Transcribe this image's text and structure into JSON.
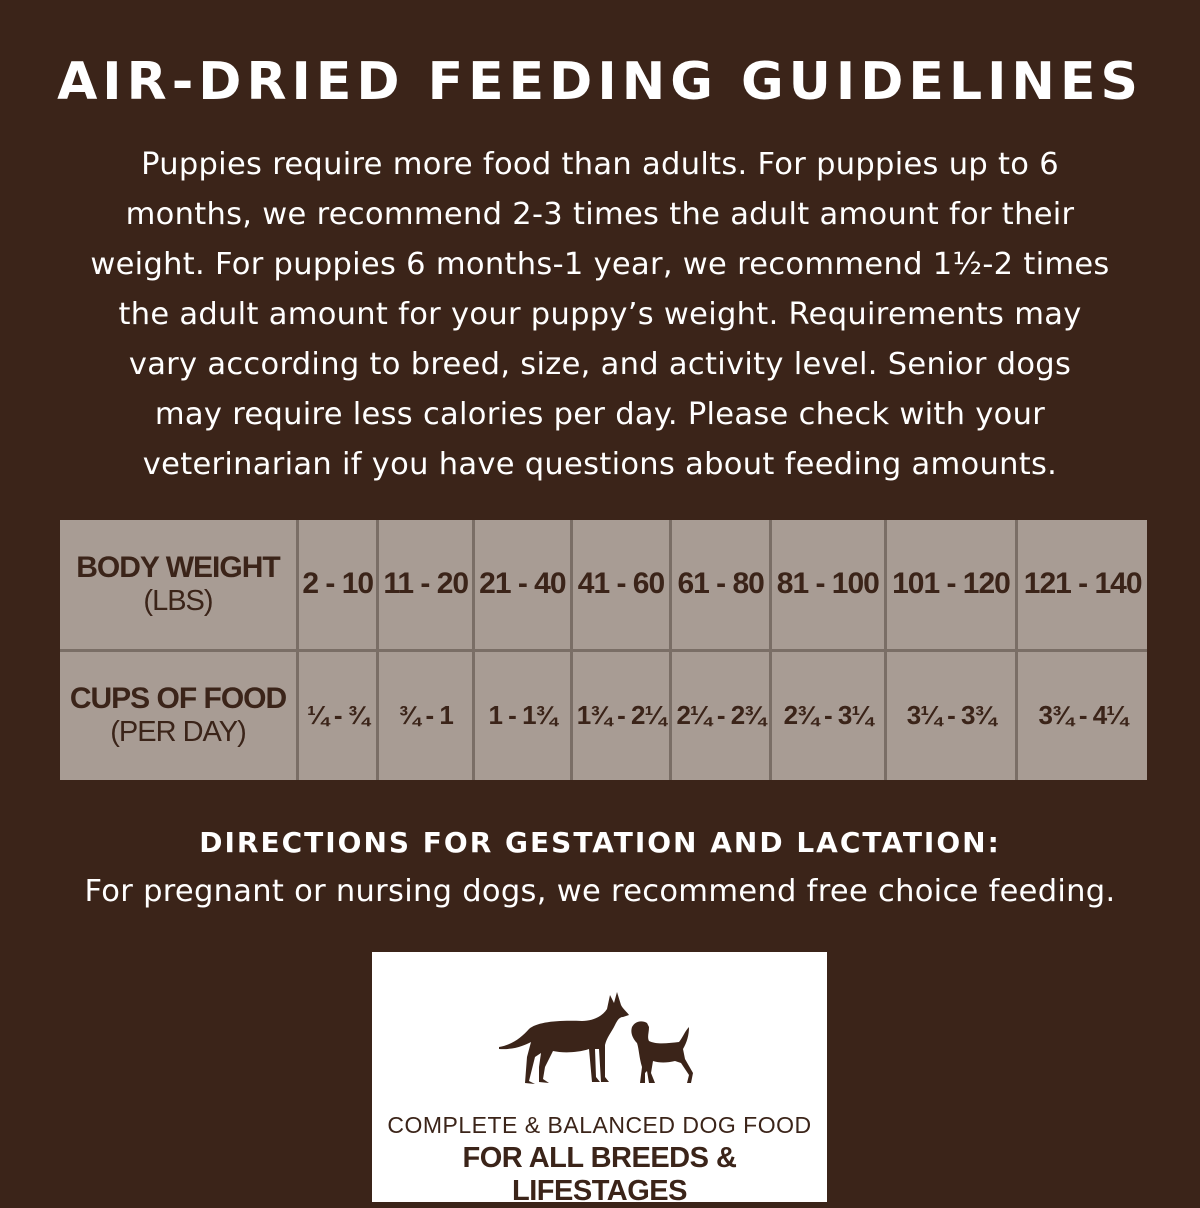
{
  "title": "AIR-DRIED FEEDING GUIDELINES",
  "intro_lines": [
    "Puppies require more food than adults. For puppies up to 6",
    "months, we recommend 2-3 times the adult amount for their",
    "weight. For puppies 6 months-1 year, we recommend 1½-2 times",
    "the adult amount for your puppy’s weight. Requirements may",
    "vary according to breed, size, and activity level. Senior dogs",
    "may require less calories per day. Please check with your",
    "veterinarian if you have questions about feeding amounts."
  ],
  "table": {
    "row1_label": "BODY WEIGHT",
    "row1_unit": "(LBS)",
    "row2_label": "CUPS OF FOOD",
    "row2_unit": "(PER DAY)",
    "weights": [
      "2 - 10",
      "11 - 20",
      "21 - 40",
      "41 - 60",
      "61 - 80",
      "81 - 100",
      "101 - 120",
      "121 - 140"
    ],
    "cups": [
      "¼ - ¾",
      "¾ - 1",
      "1 - 1¾",
      "1¾ - 2¼",
      "2¼ - 2¾",
      "2¾ - 3¼",
      "3¼ - 3¾",
      "3¾ - 4¼"
    ]
  },
  "directions": {
    "heading": "DIRECTIONS FOR GESTATION AND LACTATION:",
    "text": "For pregnant or nursing dogs, we recommend free choice feeding."
  },
  "badge": {
    "line1": "COMPLETE & BALANCED DOG FOOD",
    "line2": "FOR ALL BREEDS & LIFESTAGES"
  },
  "colors": {
    "background": "#3b2419",
    "table": "#a89c94",
    "badge": "#ffffff"
  }
}
